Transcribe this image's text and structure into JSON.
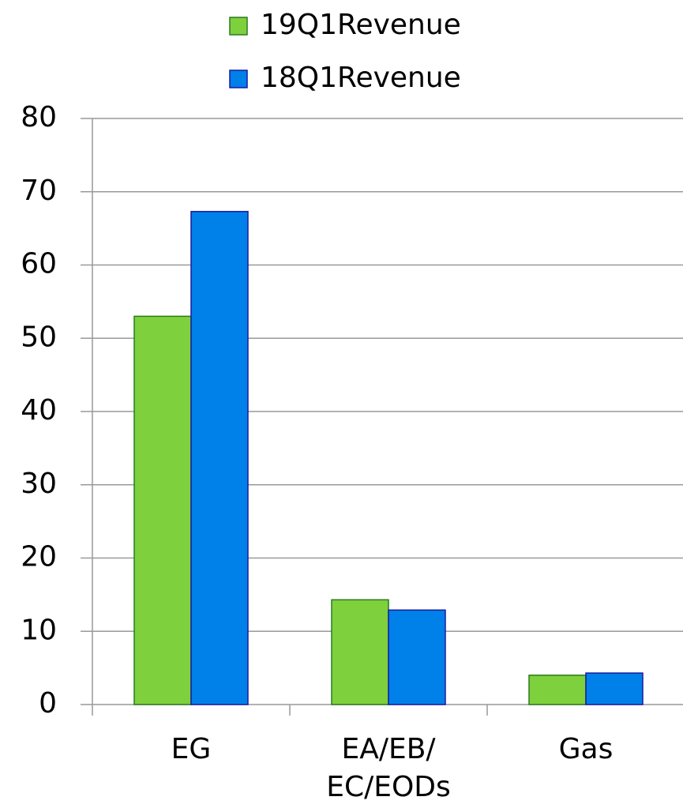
{
  "chart_data": {
    "type": "bar",
    "categories": [
      "EG",
      "EA/EB/ EC/EODs",
      "Gas"
    ],
    "series": [
      {
        "name": "19Q1Revenue",
        "color": "#7ed13c",
        "values": [
          53.0,
          14.3,
          4.0
        ]
      },
      {
        "name": "18Q1Revenue",
        "color": "#0080e9",
        "values": [
          67.3,
          12.9,
          4.3
        ]
      }
    ],
    "ylim": [
      0,
      80
    ],
    "yticks": [
      0,
      10,
      20,
      30,
      40,
      50,
      60,
      70,
      80
    ],
    "grid": true,
    "legend": "top"
  }
}
